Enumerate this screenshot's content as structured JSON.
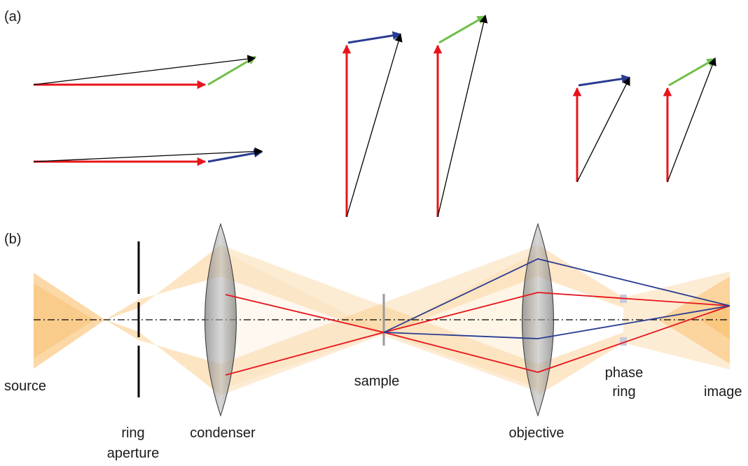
{
  "panels": {
    "a": "(a)",
    "b": "(b)"
  },
  "labels": {
    "source": "source",
    "ring": "ring",
    "aperture": "aperture",
    "condenser": "condenser",
    "sample": "sample",
    "phase": "phase",
    "phase_ring": "ring",
    "objective": "objective",
    "image": "image"
  },
  "colors": {
    "background_wave": "#e8141b",
    "positive_phase": "#6dbe45",
    "negative_phase": "#2a3c92",
    "resultant": "#000000",
    "light_cone": "#f7a93a",
    "lens_fill": "#8a8a8a",
    "axis": "#000000",
    "ray_red": "#e8141b",
    "ray_blue": "#2a3c92"
  }
}
